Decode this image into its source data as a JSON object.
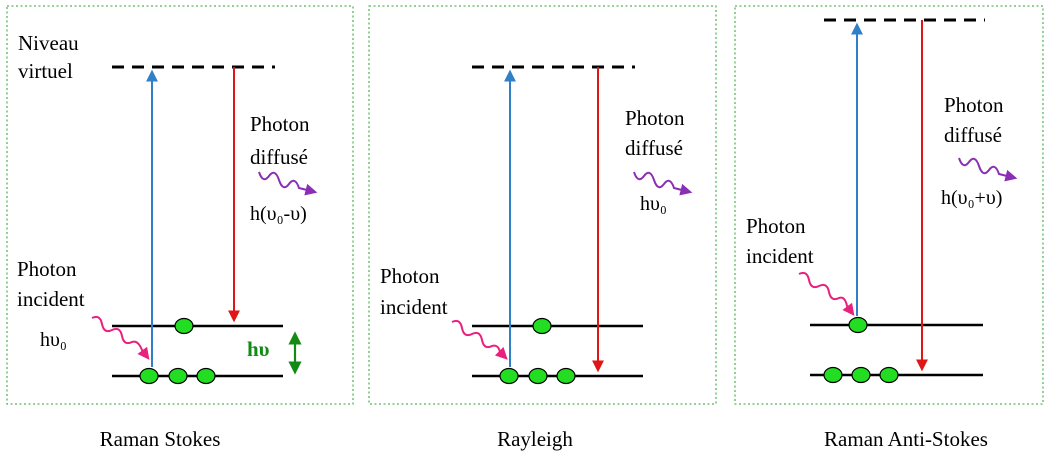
{
  "colors": {
    "border": "#58b558",
    "level_line": "#000000",
    "excitation_arrow": "#2f80c8",
    "emission_arrow": "#e01616",
    "electron_fill": "#22dd22",
    "incident_wave": "#e8217f",
    "scattered_wave": "#8a2fb5",
    "energy_gap": "#138a13"
  },
  "panels": [
    {
      "caption": "Raman Stokes",
      "virtual_level_label": [
        "Niveau",
        "virtuel"
      ],
      "incident_label": [
        "Photon",
        "incident"
      ],
      "incident_energy": "hυ₀",
      "scattered_label": [
        "Photon",
        "diffusé"
      ],
      "scattered_energy": "h(υ₀-υ)",
      "gap_label": "hυ"
    },
    {
      "caption": "Rayleigh",
      "incident_label": [
        "Photon",
        "incident"
      ],
      "scattered_label": [
        "Photon",
        "diffusé"
      ],
      "scattered_energy": "hυ₀"
    },
    {
      "caption": "Raman Anti-Stokes",
      "incident_label": [
        "Photon",
        "incident"
      ],
      "scattered_label": [
        "Photon",
        "diffusé"
      ],
      "scattered_energy": "h(υ₀+υ)"
    }
  ]
}
